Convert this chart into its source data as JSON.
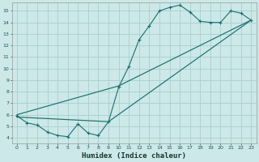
{
  "xlabel": "Humidex (Indice chaleur)",
  "bg_color": "#cce8e8",
  "grid_color": "#aacece",
  "line_color": "#1a7070",
  "xlim": [
    -0.5,
    23.5
  ],
  "ylim": [
    3.5,
    15.7
  ],
  "xticks": [
    0,
    1,
    2,
    3,
    4,
    5,
    6,
    7,
    8,
    9,
    10,
    11,
    12,
    13,
    14,
    15,
    16,
    17,
    18,
    19,
    20,
    21,
    22,
    23
  ],
  "yticks": [
    4,
    5,
    6,
    7,
    8,
    9,
    10,
    11,
    12,
    13,
    14,
    15
  ],
  "line1_x": [
    0,
    1,
    2,
    3,
    4,
    5,
    6,
    7,
    8,
    9,
    10,
    11,
    12,
    13,
    14,
    15,
    16,
    17,
    18,
    19,
    20,
    21,
    22,
    23
  ],
  "line1_y": [
    5.9,
    5.3,
    5.1,
    4.5,
    4.2,
    4.1,
    5.2,
    4.4,
    4.2,
    5.4,
    8.4,
    10.2,
    12.5,
    13.7,
    15.0,
    15.3,
    15.5,
    14.9,
    14.1,
    14.0,
    14.0,
    15.0,
    14.8,
    14.2
  ],
  "line2_x": [
    0,
    10,
    23
  ],
  "line2_y": [
    6.0,
    8.5,
    14.2
  ],
  "line3_x": [
    0,
    9,
    23
  ],
  "line3_y": [
    5.8,
    5.4,
    14.2
  ],
  "xlabel_fontsize": 6.5,
  "tick_fontsize": 4.5
}
